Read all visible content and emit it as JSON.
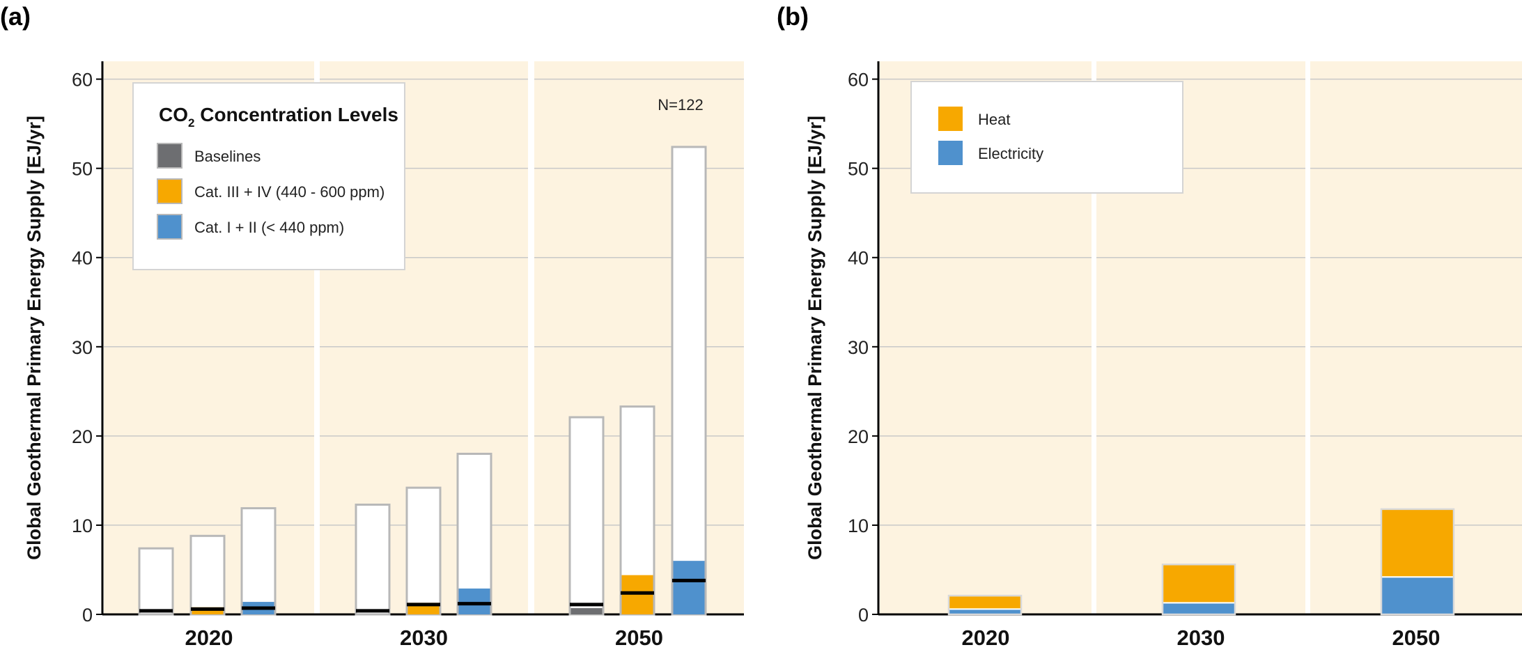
{
  "chart_data": [
    {
      "panel": "(a)",
      "type": "bar",
      "ylabel": "Global Geothermal Primary Energy Supply [EJ/yr]",
      "ylim": [
        0,
        62
      ],
      "yticks": [
        0,
        10,
        20,
        30,
        40,
        50,
        60
      ],
      "grid": true,
      "groups": [
        "2020",
        "2030",
        "2050"
      ],
      "annotation": "N=122",
      "legend": {
        "title_prefix": "CO",
        "title_sub": "2",
        "title_suffix": " Concentration Levels",
        "placement": "top-left",
        "items": [
          {
            "label": "Baselines",
            "color": "#6d6e71"
          },
          {
            "label": "Cat. III + IV (440 - 600 ppm)",
            "color": "#f7a800"
          },
          {
            "label": "Cat. I + II (< 440 ppm)",
            "color": "#4f91cd"
          }
        ]
      },
      "series": [
        {
          "name": "Baselines",
          "color": "#6d6e71",
          "box_min": [
            0,
            0,
            0
          ],
          "box_max": [
            7.4,
            12.3,
            22.1
          ],
          "median": [
            0.4,
            0.4,
            1.1
          ],
          "percentile_25": [
            0,
            0,
            0.7
          ]
        },
        {
          "name": "Cat. III + IV (440 - 600 ppm)",
          "color": "#f7a800",
          "box_min": [
            0,
            0,
            0
          ],
          "box_max": [
            8.8,
            14.2,
            23.3
          ],
          "median": [
            0.6,
            1.1,
            2.4
          ],
          "percentile_25": [
            0.8,
            1.3,
            4.4
          ]
        },
        {
          "name": "Cat. I + II (< 440 ppm)",
          "color": "#4f91cd",
          "box_min": [
            0,
            0,
            0
          ],
          "box_max": [
            11.9,
            18.0,
            52.4
          ],
          "median": [
            0.7,
            1.2,
            3.8
          ],
          "percentile_25": [
            1.4,
            2.9,
            6.0
          ]
        }
      ]
    },
    {
      "panel": "(b)",
      "type": "bar",
      "stacked": true,
      "ylabel": "Global Geothermal Primary Energy Supply [EJ/yr]",
      "ylim": [
        0,
        62
      ],
      "yticks": [
        0,
        10,
        20,
        30,
        40,
        50,
        60
      ],
      "grid": true,
      "categories": [
        "2020",
        "2030",
        "2050"
      ],
      "legend": {
        "placement": "top-left",
        "items": [
          {
            "label": "Heat",
            "color": "#f7a800"
          },
          {
            "label": "Electricity",
            "color": "#4f91cd"
          }
        ]
      },
      "series": [
        {
          "name": "Electricity",
          "color": "#4f91cd",
          "values": [
            0.6,
            1.3,
            4.2
          ]
        },
        {
          "name": "Heat",
          "color": "#f7a800",
          "values": [
            1.5,
            4.3,
            7.6
          ]
        }
      ]
    }
  ]
}
